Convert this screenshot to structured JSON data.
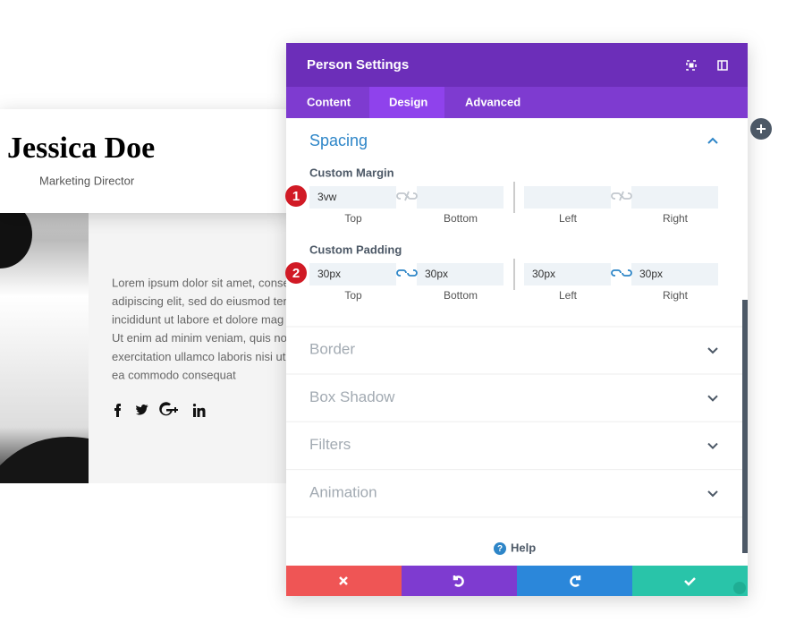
{
  "card": {
    "name": "Jessica Doe",
    "role": "Marketing Director",
    "bio": [
      "Lorem ipsum dolor sit amet, conse",
      "adipiscing elit, sed do eiusmod ten",
      "incididunt ut labore et dolore mag",
      "Ut enim ad minim veniam, quis no",
      "exercitation ullamco laboris nisi ut",
      "ea commodo consequat"
    ]
  },
  "panel": {
    "title": "Person Settings",
    "tabs": [
      "Content",
      "Design",
      "Advanced"
    ],
    "spacing": {
      "title": "Spacing",
      "groups": [
        {
          "badge": 1,
          "label": "Custom Margin",
          "linked": false,
          "fields": [
            {
              "value": "3vw",
              "label": "Top"
            },
            {
              "label": "Bottom"
            },
            {
              "label": "Left"
            },
            {
              "label": "Right"
            }
          ]
        },
        {
          "badge": 2,
          "label": "Custom Padding",
          "linked": true,
          "fields": [
            {
              "value": "30px",
              "label": "Top"
            },
            {
              "value": "30px",
              "label": "Bottom"
            },
            {
              "value": "30px",
              "label": "Left"
            },
            {
              "value": "30px",
              "label": "Right"
            }
          ]
        }
      ]
    },
    "sections": [
      "Border",
      "Box Shadow",
      "Filters",
      "Animation"
    ],
    "help": "Help"
  }
}
